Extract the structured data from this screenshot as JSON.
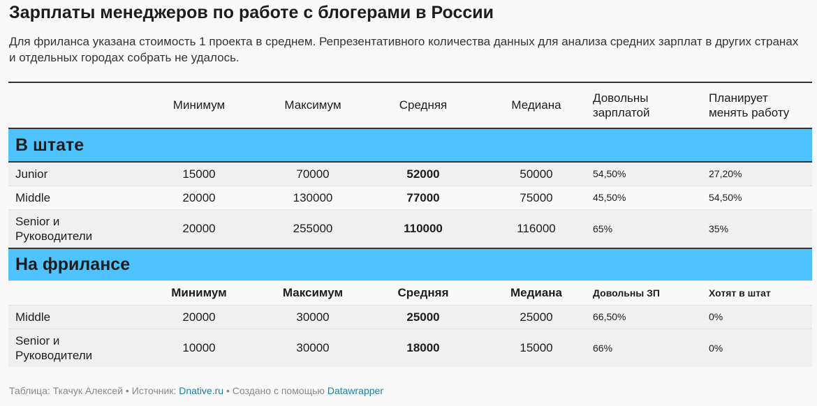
{
  "title": "Зарплаты менеджеров по работе с блогерами в России",
  "subtitle": "Для фриланса указана стоимость 1 проекта в среднем. Репрезентативного количества данных для анализа средних зарплат в других странах и отдельных городах собрать не удалось.",
  "header": {
    "min": "Минимум",
    "max": "Максимум",
    "avg": "Средняя",
    "median": "Медиана",
    "satisfied": "Довольны зарплатой",
    "plan_change": "Планирует менять работу"
  },
  "staff": {
    "label": "В штате",
    "rows": [
      {
        "level": "Junior",
        "min": "15000",
        "max": "70000",
        "avg": "52000",
        "median": "50000",
        "satisfied": "54,50%",
        "plan_change": "27,20%"
      },
      {
        "level": "Middle",
        "min": "20000",
        "max": "130000",
        "avg": "77000",
        "median": "75000",
        "satisfied": "45,50%",
        "plan_change": "54,50%"
      },
      {
        "level": "Senior и Руководители",
        "min": "20000",
        "max": "255000",
        "avg": "110000",
        "median": "116000",
        "satisfied": "65%",
        "plan_change": "35%"
      }
    ]
  },
  "freelance": {
    "label": "На фрилансе",
    "header": {
      "min": "Минимум",
      "max": "Максимум",
      "avg": "Средняя",
      "median": "Медиана",
      "satisfied": "Довольны ЗП",
      "want_staff": "Хотят в штат"
    },
    "rows": [
      {
        "level": "Middle",
        "min": "20000",
        "max": "30000",
        "avg": "25000",
        "median": "25000",
        "satisfied": "66,50%",
        "want_staff": "0%"
      },
      {
        "level": "Senior и Руководители",
        "min": "10000",
        "max": "30000",
        "avg": "18000",
        "median": "15000",
        "satisfied": "66%",
        "want_staff": "0%"
      }
    ]
  },
  "footer": {
    "prefix": "Таблица: Ткачук Алексей • Источник: ",
    "source_link": "Dnative.ru",
    "middle": " • Создано с помощью ",
    "tool_link": "Datawrapper"
  },
  "colors": {
    "section_bg": "#4ec3ff",
    "band_bg": "#f0f0f0",
    "link": "#1d81a2"
  }
}
